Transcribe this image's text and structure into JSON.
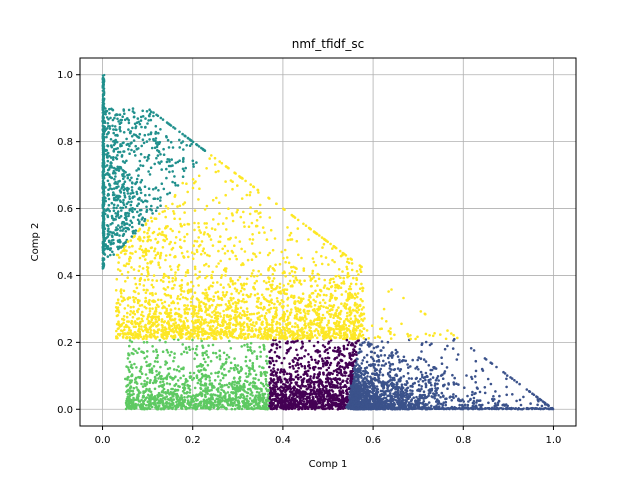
{
  "chart_data": {
    "type": "scatter",
    "title": "nmf_tfidf_sc",
    "xlabel": "Comp  1",
    "ylabel": "Comp  2",
    "xlim": [
      -0.05,
      1.05
    ],
    "ylim": [
      -0.05,
      1.05
    ],
    "xticks": [
      0.0,
      0.2,
      0.4,
      0.6,
      0.8,
      1.0
    ],
    "yticks": [
      0.0,
      0.2,
      0.4,
      0.6,
      0.8,
      1.0
    ],
    "xtick_labels": [
      "0.0",
      "0.2",
      "0.4",
      "0.6",
      "0.8",
      "1.0"
    ],
    "ytick_labels": [
      "0.0",
      "0.2",
      "0.4",
      "0.6",
      "0.8",
      "1.0"
    ],
    "grid": true,
    "legend": false,
    "clusters": [
      {
        "color": "#21908d",
        "region": "upper-left",
        "x_range": [
          0.0,
          0.33
        ],
        "y_range": [
          0.42,
          1.0
        ],
        "centroid": [
          0.08,
          0.68
        ]
      },
      {
        "color": "#fde725",
        "region": "middle",
        "x_range": [
          0.0,
          0.67
        ],
        "y_range": [
          0.2,
          0.67
        ],
        "centroid": [
          0.3,
          0.4
        ]
      },
      {
        "color": "#5ec962",
        "region": "lower-left",
        "x_range": [
          0.0,
          0.38
        ],
        "y_range": [
          0.0,
          0.22
        ],
        "centroid": [
          0.22,
          0.1
        ]
      },
      {
        "color": "#440154",
        "region": "lower-middle",
        "x_range": [
          0.37,
          0.58
        ],
        "y_range": [
          0.0,
          0.29
        ],
        "centroid": [
          0.46,
          0.12
        ]
      },
      {
        "color": "#3b528b",
        "region": "lower-right",
        "x_range": [
          0.55,
          1.0
        ],
        "y_range": [
          0.0,
          0.33
        ],
        "centroid": [
          0.65,
          0.08
        ]
      }
    ]
  }
}
